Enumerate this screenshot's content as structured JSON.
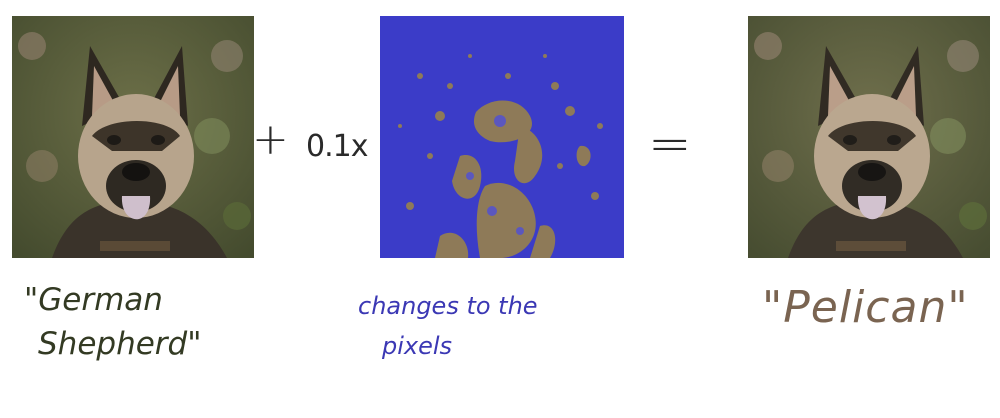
{
  "operators": {
    "plus": "+",
    "factor": "0.1x",
    "equals": "="
  },
  "captions": {
    "left_line1": "\"German",
    "left_line2": "Shepherd\"",
    "mid_line1": "changes to the",
    "mid_line2": "pixels",
    "right": "\"Pelican\""
  },
  "colors": {
    "left_caption": "#333a23",
    "mid_caption": "#3b38b4",
    "right_caption": "#7a6451",
    "noise_base": "#3b3cc8",
    "noise_speckle": "#8e7a58"
  }
}
